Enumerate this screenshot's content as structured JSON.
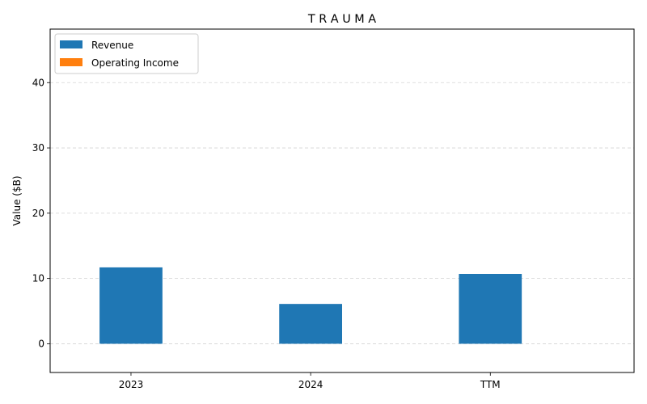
{
  "chart_data": {
    "type": "bar",
    "title": "T R A U M A",
    "xlabel": "",
    "ylabel": "Value ($B)",
    "categories": [
      "2023",
      "2024",
      "TTM"
    ],
    "series": [
      {
        "name": "Revenue",
        "values": [
          11.7,
          6.1,
          10.7
        ],
        "color": "#1f77b4"
      },
      {
        "name": "Operating Income",
        "values": [
          0,
          0,
          0
        ],
        "color": "#ff7f0e"
      }
    ],
    "ylim": [
      -4.4,
      48.2
    ],
    "yticks": [
      0,
      10,
      20,
      30,
      40
    ],
    "ytick_labels": [
      "0",
      "10",
      "20",
      "30",
      "40"
    ],
    "grid": "y-dashed",
    "legend_position": "top-left"
  }
}
